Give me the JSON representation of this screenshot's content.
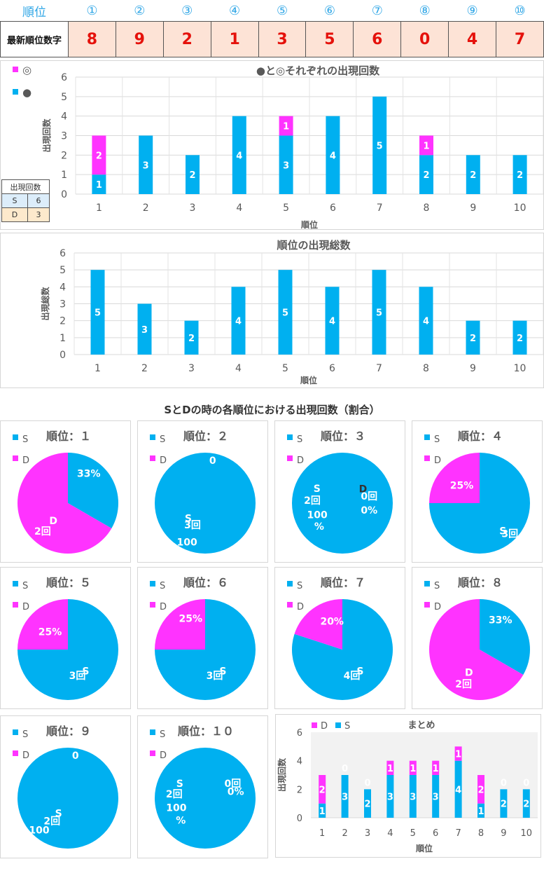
{
  "header": {
    "label": "順位",
    "positions": [
      "①",
      "②",
      "③",
      "④",
      "⑤",
      "⑥",
      "⑦",
      "⑧",
      "⑨",
      "⑩"
    ],
    "row_label": "最新順位数字",
    "digits": [
      "8",
      "9",
      "2",
      "1",
      "3",
      "5",
      "6",
      "0",
      "4",
      "7"
    ]
  },
  "count_table": {
    "title": "出現回数",
    "rows": [
      {
        "label": "S",
        "value": "6",
        "color": "#dcedfa"
      },
      {
        "label": "D",
        "value": "3",
        "color": "#fde9cc"
      }
    ]
  },
  "section_title": "SとDの時の各順位における出現回数（割合）",
  "colors": {
    "blue": "#00b0f0",
    "pink": "#ff33ff",
    "grid": "#d9d9d9",
    "panel_bg": "#f2f2f2"
  },
  "chart_data": [
    {
      "type": "bar",
      "title": "●と◎それぞれの出現回数",
      "xlabel": "順位",
      "ylabel": "出現回数",
      "ylim": [
        0,
        6
      ],
      "categories": [
        "1",
        "2",
        "3",
        "4",
        "5",
        "6",
        "7",
        "8",
        "9",
        "10"
      ],
      "legend": [
        "◎",
        "●"
      ],
      "series": [
        {
          "name": "●",
          "color": "#00b0f0",
          "values": [
            1,
            3,
            2,
            4,
            3,
            4,
            5,
            2,
            2,
            2
          ]
        },
        {
          "name": "◎",
          "color": "#ff33ff",
          "values": [
            2,
            0,
            0,
            0,
            1,
            0,
            0,
            1,
            0,
            0
          ]
        }
      ]
    },
    {
      "type": "bar",
      "title": "順位の出現総数",
      "xlabel": "順位",
      "ylabel": "出現総数",
      "ylim": [
        0,
        6
      ],
      "categories": [
        "1",
        "2",
        "3",
        "4",
        "5",
        "6",
        "7",
        "8",
        "9",
        "10"
      ],
      "series": [
        {
          "color": "#00b0f0",
          "values": [
            5,
            3,
            2,
            4,
            5,
            4,
            5,
            4,
            2,
            2
          ]
        }
      ]
    },
    {
      "type": "pie",
      "pies": [
        {
          "title": "順位：１",
          "S": 1,
          "D": 2,
          "labels": [
            {
              "t": "33%",
              "c": "w",
              "a": 35,
              "r": 0.72
            },
            {
              "t": "D",
              "c": "w",
              "a": 220,
              "r": 0.45
            },
            {
              "t": "2回",
              "c": "w",
              "a": 222,
              "r": 0.75
            }
          ]
        },
        {
          "title": "順位：２",
          "S": 3,
          "D": 0,
          "labels": [
            {
              "t": "0",
              "c": "w",
              "a": 10,
              "r": 0.86
            },
            {
              "t": "S",
              "c": "w",
              "a": 228,
              "r": 0.45
            },
            {
              "t": "3回",
              "c": "w",
              "a": 210,
              "r": 0.5
            },
            {
              "t": "100",
              "c": "w",
              "a": 205,
              "r": 0.85
            }
          ]
        },
        {
          "title": "順位：３",
          "S": 2,
          "D": 0,
          "labels": [
            {
              "t": "D",
              "c": "#333",
              "a": 55,
              "r": 0.5
            },
            {
              "t": "0回",
              "c": "w",
              "a": 75,
              "r": 0.55
            },
            {
              "t": "0%",
              "c": "w",
              "a": 105,
              "r": 0.55
            },
            {
              "t": "S",
              "c": "w",
              "a": 300,
              "r": 0.58
            },
            {
              "t": "2回",
              "c": "w",
              "a": 275,
              "r": 0.6
            },
            {
              "t": "100",
              "c": "w",
              "a": 245,
              "r": 0.55
            },
            {
              "t": "%",
              "c": "w",
              "a": 225,
              "r": 0.65
            }
          ]
        },
        {
          "title": "順位：４",
          "S": 3,
          "D": 1,
          "labels": [
            {
              "t": "25%",
              "c": "w",
              "a": -45,
              "r": 0.5
            },
            {
              "t": "S",
              "c": "w",
              "a": 140,
              "r": 0.72
            },
            {
              "t": "3回",
              "c": "w",
              "a": 135,
              "r": 0.85
            }
          ]
        },
        {
          "title": "順位：５",
          "S": 3,
          "D": 1,
          "labels": [
            {
              "t": "25%",
              "c": "w",
              "a": -45,
              "r": 0.5
            },
            {
              "t": "S",
              "c": "w",
              "a": 140,
              "r": 0.55
            },
            {
              "t": "3回",
              "c": "w",
              "a": 160,
              "r": 0.55
            }
          ]
        },
        {
          "title": "順位：６",
          "S": 3,
          "D": 1,
          "labels": [
            {
              "t": "25%",
              "c": "w",
              "a": -25,
              "r": 0.68
            },
            {
              "t": "S",
              "c": "w",
              "a": 140,
              "r": 0.55
            },
            {
              "t": "3回",
              "c": "w",
              "a": 160,
              "r": 0.55
            }
          ]
        },
        {
          "title": "順位：７",
          "S": 4,
          "D": 1,
          "labels": [
            {
              "t": "20%",
              "c": "w",
              "a": -20,
              "r": 0.6
            },
            {
              "t": "S",
              "c": "w",
              "a": 140,
              "r": 0.55
            },
            {
              "t": "4回",
              "c": "w",
              "a": 160,
              "r": 0.55
            }
          ]
        },
        {
          "title": "順位：８",
          "S": 1,
          "D": 2,
          "labels": [
            {
              "t": "33%",
              "c": "w",
              "a": 35,
              "r": 0.72
            },
            {
              "t": "D",
              "c": "w",
              "a": 205,
              "r": 0.5
            },
            {
              "t": "2回",
              "c": "w",
              "a": 205,
              "r": 0.75
            }
          ]
        },
        {
          "title": "順位：９",
          "S": 2,
          "D": 0,
          "labels": [
            {
              "t": "0",
              "c": "w",
              "a": 10,
              "r": 0.86
            },
            {
              "t": "S",
              "c": "w",
              "a": 212,
              "r": 0.35
            },
            {
              "t": "2回",
              "c": "w",
              "a": 215,
              "r": 0.55
            },
            {
              "t": "100",
              "c": "w",
              "a": 222,
              "r": 0.85
            }
          ]
        },
        {
          "title": "順位：１０",
          "S": 2,
          "D": 0,
          "labels": [
            {
              "t": "0回",
              "c": "w",
              "a": 62,
              "r": 0.62
            },
            {
              "t": "0%",
              "c": "w",
              "a": 78,
              "r": 0.62
            },
            {
              "t": "S",
              "c": "w",
              "a": 300,
              "r": 0.58
            },
            {
              "t": "2回",
              "c": "w",
              "a": 278,
              "r": 0.62
            },
            {
              "t": "100",
              "c": "w",
              "a": 252,
              "r": 0.6
            },
            {
              "t": "%",
              "c": "w",
              "a": 228,
              "r": 0.65
            }
          ]
        }
      ],
      "legend": [
        "S",
        "D"
      ]
    },
    {
      "type": "bar",
      "title": "まとめ",
      "xlabel": "順位",
      "ylabel": "出現回数",
      "ylim": [
        0,
        6
      ],
      "categories": [
        "1",
        "2",
        "3",
        "4",
        "5",
        "6",
        "7",
        "8",
        "9",
        "10"
      ],
      "legend": [
        "D",
        "S"
      ],
      "series": [
        {
          "name": "S",
          "color": "#00b0f0",
          "values": [
            1,
            3,
            2,
            3,
            3,
            3,
            4,
            1,
            2,
            2
          ]
        },
        {
          "name": "D",
          "color": "#ff33ff",
          "values": [
            2,
            0,
            0,
            1,
            1,
            1,
            1,
            2,
            0,
            0
          ]
        }
      ]
    }
  ]
}
